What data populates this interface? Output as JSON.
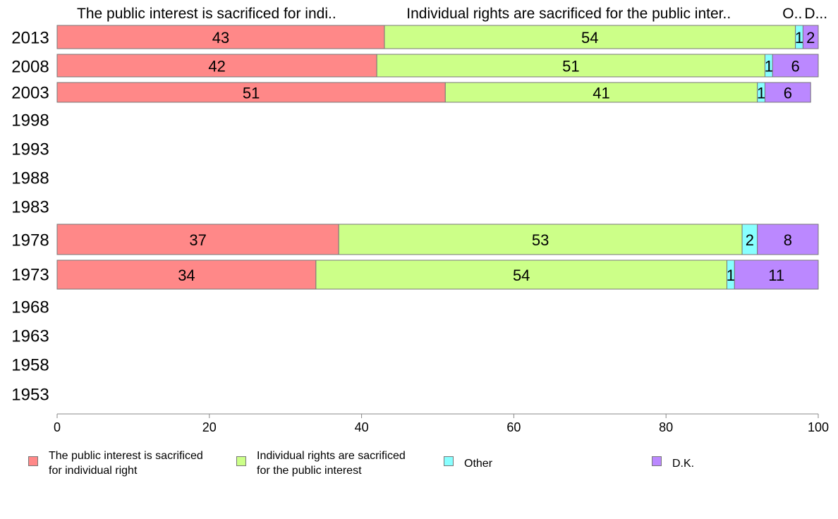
{
  "chart_data": {
    "type": "bar",
    "orientation": "horizontal",
    "stacked": true,
    "categories": [
      "2013",
      "2008",
      "2003",
      "1998",
      "1993",
      "1988",
      "1983",
      "1978",
      "1973",
      "1968",
      "1963",
      "1958",
      "1953"
    ],
    "series": [
      {
        "name": "The public interest is sacrificed for individual right",
        "values": [
          43,
          42,
          51,
          null,
          null,
          null,
          null,
          37,
          34,
          null,
          null,
          null,
          null
        ]
      },
      {
        "name": "Individual rights are sacrificed for the public interest",
        "values": [
          54,
          51,
          41,
          null,
          null,
          null,
          null,
          53,
          54,
          null,
          null,
          null,
          null
        ]
      },
      {
        "name": "Other",
        "values": [
          1,
          1,
          1,
          null,
          null,
          null,
          null,
          2,
          1,
          null,
          null,
          null,
          null
        ]
      },
      {
        "name": "D.K.",
        "values": [
          2,
          6,
          6,
          null,
          null,
          null,
          null,
          8,
          11,
          null,
          null,
          null,
          null
        ]
      }
    ],
    "colors": [
      "#ff8888",
      "#ccff88",
      "#88ffff",
      "#bb88ff"
    ],
    "column_headers": [
      "The public interest is sacrificed for indi..",
      "Individual rights are sacrificed for the public inter..",
      "O..",
      "D..."
    ],
    "xlim": [
      0,
      100
    ],
    "xticks": [
      0,
      20,
      40,
      60,
      80,
      100
    ],
    "legend_placement": "bottom",
    "grid": false
  },
  "legend": {
    "items": [
      {
        "label": "The public interest is sacrificed\nfor individual right",
        "color": "#ff8888"
      },
      {
        "label": "Individual rights are sacrificed\nfor the public interest",
        "color": "#ccff88"
      },
      {
        "label": "Other",
        "color": "#88ffff"
      },
      {
        "label": "D.K.",
        "color": "#bb88ff"
      }
    ]
  }
}
